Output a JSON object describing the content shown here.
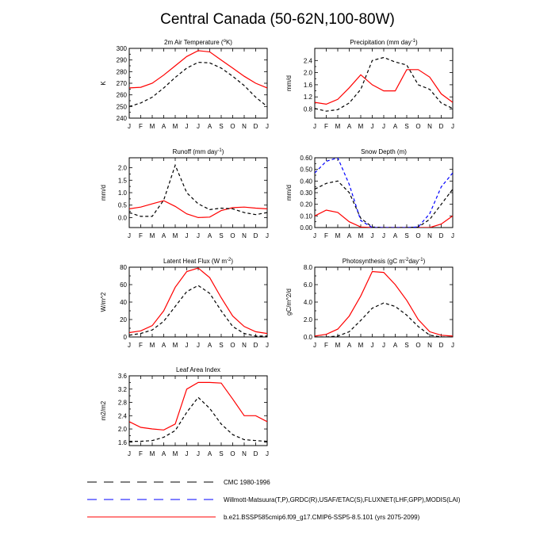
{
  "title": "Central Canada (50-62N,100-80W)",
  "months": [
    "J",
    "F",
    "M",
    "A",
    "M",
    "J",
    "J",
    "A",
    "S",
    "O",
    "N",
    "D",
    "J"
  ],
  "colors": {
    "cmc": "#000000",
    "obs": "#0000ff",
    "model": "#ff0000"
  },
  "legend": [
    {
      "key": "cmc",
      "label": "CMC 1980-1996",
      "style": "dashed",
      "color": "#000000"
    },
    {
      "key": "obs",
      "label": "Willmott-Matsuura(T,P),GRDC(R),USAF/ETAC(S),FLUXNET(LHF,GPP),MODIS(LAI)",
      "style": "dashed",
      "color": "#0000ff"
    },
    {
      "key": "model",
      "label": "b.e21.BSSP585cmip6.f09_g17.CMIP6-SSP5-8.5.101 (yrs 2075-2099)",
      "style": "solid",
      "color": "#ff0000"
    }
  ],
  "chart_data": [
    {
      "id": "temp",
      "type": "line",
      "title": "2m Air Temperature (",
      "title_sup": "o",
      "title_rest": "K)",
      "ylabel": "K",
      "ylim": [
        240,
        300
      ],
      "yticks": [
        240,
        250,
        260,
        270,
        280,
        290,
        300
      ],
      "ytick_labels": [
        "240",
        "250",
        "260",
        "270",
        "280",
        "290",
        "300"
      ],
      "x": [
        "J",
        "F",
        "M",
        "A",
        "M",
        "J",
        "J",
        "A",
        "S",
        "O",
        "N",
        "D",
        "J"
      ],
      "series": [
        {
          "key": "model",
          "style": "solid",
          "values": [
            266,
            266.5,
            270,
            277,
            285,
            293,
            298,
            297,
            290,
            283,
            276,
            270,
            266
          ]
        },
        {
          "key": "cmc",
          "style": "dashed",
          "values": [
            250,
            253,
            258,
            266,
            275,
            283,
            288,
            287.5,
            283,
            276,
            268,
            258,
            250
          ]
        }
      ]
    },
    {
      "id": "precip",
      "type": "line",
      "title": "Precipitation (mm day",
      "title_sup": "-1",
      "title_rest": ")",
      "ylabel": "mm/d",
      "ylim": [
        0.5,
        2.8
      ],
      "yticks": [
        0.8,
        1.2,
        1.6,
        2.0,
        2.4
      ],
      "ytick_labels": [
        "0.8",
        "1.2",
        "1.6",
        "2.0",
        "2.4"
      ],
      "x": [
        "J",
        "F",
        "M",
        "A",
        "M",
        "J",
        "J",
        "A",
        "S",
        "O",
        "N",
        "D",
        "J"
      ],
      "series": [
        {
          "key": "model",
          "style": "solid",
          "values": [
            1.02,
            0.96,
            1.12,
            1.5,
            1.93,
            1.6,
            1.4,
            1.4,
            2.1,
            2.1,
            1.85,
            1.3,
            1.02
          ]
        },
        {
          "key": "cmc",
          "style": "dashed",
          "values": [
            0.82,
            0.73,
            0.78,
            1.0,
            1.45,
            2.4,
            2.5,
            2.35,
            2.25,
            1.6,
            1.45,
            1.0,
            0.82
          ]
        }
      ]
    },
    {
      "id": "runoff",
      "type": "line",
      "title": "Runoff (mm day",
      "title_sup": "-1",
      "title_rest": ")",
      "ylabel": "mm/d",
      "ylim": [
        -0.4,
        2.4
      ],
      "yticks": [
        0.0,
        0.5,
        1.0,
        1.5,
        2.0
      ],
      "ytick_labels": [
        "0.0",
        "0.5",
        "1.0",
        "1.5",
        "2.0"
      ],
      "x": [
        "J",
        "F",
        "M",
        "A",
        "M",
        "J",
        "J",
        "A",
        "S",
        "O",
        "N",
        "D",
        "J"
      ],
      "series": [
        {
          "key": "model",
          "style": "solid",
          "values": [
            0.35,
            0.42,
            0.55,
            0.68,
            0.45,
            0.15,
            0.0,
            0.02,
            0.28,
            0.4,
            0.42,
            0.38,
            0.35
          ]
        },
        {
          "key": "cmc",
          "style": "dashed",
          "values": [
            0.2,
            0.05,
            0.05,
            0.7,
            2.1,
            1.0,
            0.55,
            0.32,
            0.38,
            0.35,
            0.2,
            0.12,
            0.2
          ]
        }
      ]
    },
    {
      "id": "snow",
      "type": "line",
      "title": "Snow Depth (m)",
      "title_sup": "",
      "title_rest": "",
      "ylabel": "mm/d",
      "ylim": [
        0,
        0.6
      ],
      "yticks": [
        0.0,
        0.1,
        0.2,
        0.3,
        0.4,
        0.5,
        0.6
      ],
      "ytick_labels": [
        "0.00",
        "0.10",
        "0.20",
        "0.30",
        "0.40",
        "0.50",
        "0.60"
      ],
      "x": [
        "J",
        "F",
        "M",
        "A",
        "M",
        "J",
        "J",
        "A",
        "S",
        "O",
        "N",
        "D",
        "J"
      ],
      "series": [
        {
          "key": "model",
          "style": "solid",
          "values": [
            0.1,
            0.15,
            0.13,
            0.05,
            0.005,
            0.0,
            0.0,
            0.0,
            0.0,
            0.0,
            0.0,
            0.03,
            0.1
          ]
        },
        {
          "key": "cmc",
          "style": "dashed",
          "values": [
            0.33,
            0.38,
            0.4,
            0.3,
            0.08,
            0.005,
            0.0,
            0.0,
            0.0,
            0.005,
            0.07,
            0.2,
            0.33
          ]
        },
        {
          "key": "obs",
          "style": "dashed",
          "values": [
            0.47,
            0.57,
            0.6,
            0.37,
            0.06,
            0.0,
            0.0,
            0.0,
            0.0,
            0.005,
            0.12,
            0.35,
            0.47
          ]
        }
      ]
    },
    {
      "id": "lhf",
      "type": "line",
      "title": "Latent Heat Flux (W m",
      "title_sup": "-2",
      "title_rest": ")",
      "ylabel": "W/m^2",
      "ylim": [
        0,
        80
      ],
      "yticks": [
        0,
        20,
        40,
        60,
        80
      ],
      "ytick_labels": [
        "0",
        "20",
        "40",
        "60",
        "80"
      ],
      "x": [
        "J",
        "F",
        "M",
        "A",
        "M",
        "J",
        "J",
        "A",
        "S",
        "O",
        "N",
        "D",
        "J"
      ],
      "series": [
        {
          "key": "model",
          "style": "solid",
          "values": [
            5,
            7,
            13,
            30,
            57,
            75,
            79,
            68,
            45,
            24,
            12,
            6,
            4
          ]
        },
        {
          "key": "cmc",
          "style": "dashed",
          "values": [
            2,
            4,
            8,
            18,
            35,
            52,
            59,
            50,
            30,
            12,
            4,
            1,
            1
          ]
        }
      ]
    },
    {
      "id": "gpp",
      "type": "line",
      "title": "Photosynthesis (gC m",
      "title_sup": "-2",
      "title_rest": "day",
      "title_sup2": "-1",
      "title_rest2": ")",
      "ylabel": "gC/m^2/d",
      "ylim": [
        0,
        8
      ],
      "yticks": [
        0,
        2,
        4,
        6,
        8
      ],
      "ytick_labels": [
        "0.0",
        "2.0",
        "4.0",
        "6.0",
        "8.0"
      ],
      "x": [
        "J",
        "F",
        "M",
        "A",
        "M",
        "J",
        "J",
        "A",
        "S",
        "O",
        "N",
        "D",
        "J"
      ],
      "series": [
        {
          "key": "model",
          "style": "solid",
          "values": [
            0.1,
            0.3,
            0.9,
            2.4,
            4.7,
            7.5,
            7.4,
            6.0,
            4.2,
            2.0,
            0.6,
            0.2,
            0.1
          ]
        },
        {
          "key": "cmc",
          "style": "dashed",
          "values": [
            0.0,
            0.0,
            0.1,
            0.6,
            1.9,
            3.3,
            3.9,
            3.5,
            2.5,
            1.2,
            0.2,
            0.0,
            0.0
          ]
        }
      ]
    },
    {
      "id": "lai",
      "type": "line",
      "title": "Leaf Area Index",
      "title_sup": "",
      "title_rest": "",
      "ylabel": "m2/m2",
      "ylim": [
        1.5,
        3.6
      ],
      "yticks": [
        1.6,
        2.0,
        2.4,
        2.8,
        3.2,
        3.6
      ],
      "ytick_labels": [
        "1.6",
        "2.0",
        "2.4",
        "2.8",
        "3.2",
        "3.6"
      ],
      "x": [
        "J",
        "F",
        "M",
        "A",
        "M",
        "J",
        "J",
        "A",
        "S",
        "O",
        "N",
        "D",
        "J"
      ],
      "series": [
        {
          "key": "model",
          "style": "solid",
          "values": [
            2.22,
            2.05,
            2.0,
            1.97,
            2.15,
            3.2,
            3.4,
            3.4,
            3.38,
            2.9,
            2.4,
            2.4,
            2.22
          ]
        },
        {
          "key": "cmc",
          "style": "dashed",
          "values": [
            1.63,
            1.63,
            1.65,
            1.75,
            1.95,
            2.5,
            2.95,
            2.62,
            2.15,
            1.83,
            1.68,
            1.65,
            1.63
          ]
        }
      ]
    }
  ]
}
